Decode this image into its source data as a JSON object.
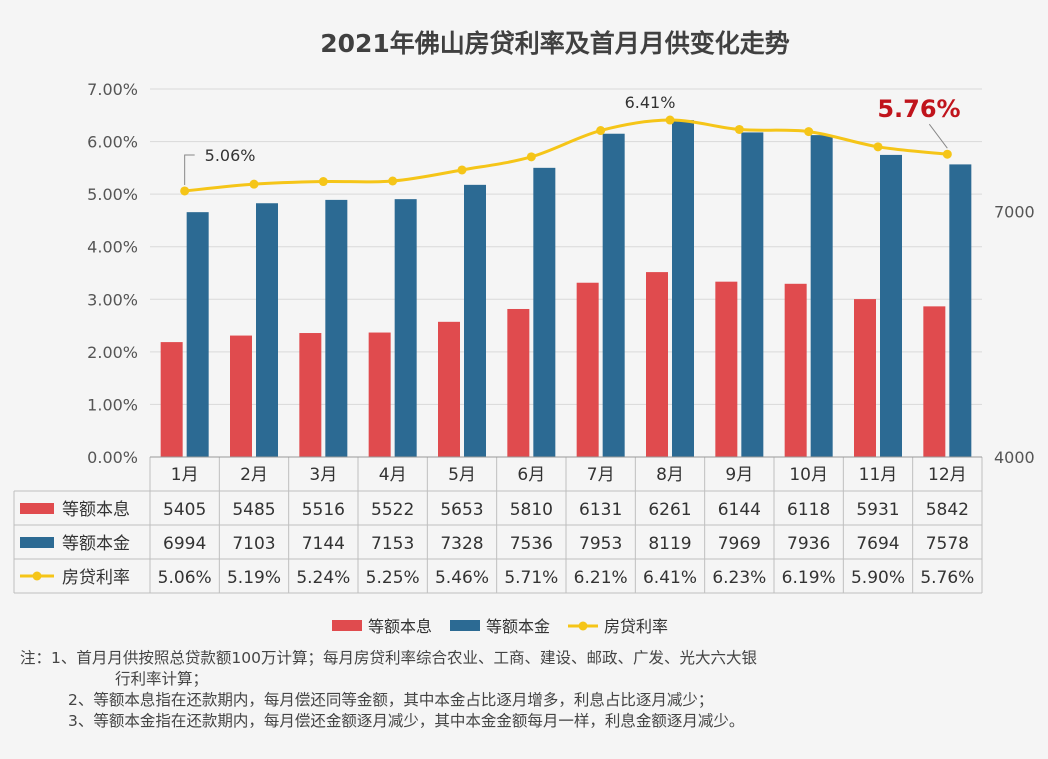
{
  "chart_data": {
    "type": "bar",
    "title": "2021年佛山房贷利率及首月月供变化走势",
    "categories": [
      "1月",
      "2月",
      "3月",
      "4月",
      "5月",
      "6月",
      "7月",
      "8月",
      "9月",
      "10月",
      "11月",
      "12月"
    ],
    "series": [
      {
        "name": "等额本息",
        "kind": "bar",
        "axis": "right",
        "color": "#E04B4E",
        "values": [
          5405,
          5485,
          5516,
          5522,
          5653,
          5810,
          6131,
          6261,
          6144,
          6118,
          5931,
          5842
        ]
      },
      {
        "name": "等额本金",
        "kind": "bar",
        "axis": "right",
        "color": "#2C6A93",
        "values": [
          6994,
          7103,
          7144,
          7153,
          7328,
          7536,
          7953,
          8119,
          7969,
          7936,
          7694,
          7578
        ]
      },
      {
        "name": "房贷利率",
        "kind": "line",
        "axis": "left",
        "color": "#F5C518",
        "values": [
          5.06,
          5.19,
          5.24,
          5.25,
          5.46,
          5.71,
          6.21,
          6.41,
          6.23,
          6.19,
          5.9,
          5.76
        ],
        "value_labels": [
          "5.06%",
          "5.19%",
          "5.24%",
          "5.25%",
          "5.46%",
          "5.71%",
          "6.21%",
          "6.41%",
          "6.23%",
          "6.19%",
          "5.90%",
          "5.76%"
        ]
      }
    ],
    "y_left": {
      "ylim": [
        0,
        7
      ],
      "ticks": [
        "0.00%",
        "1.00%",
        "2.00%",
        "3.00%",
        "4.00%",
        "5.00%",
        "6.00%",
        "7.00%"
      ]
    },
    "y_right": {
      "ylim": [
        4000,
        8500
      ],
      "ticks": [
        "4000",
        "7000"
      ],
      "tick_values": [
        4000,
        7000
      ]
    },
    "annotations": [
      {
        "index": 0,
        "text": "5.06%",
        "style": "normal"
      },
      {
        "index": 7,
        "text": "6.41%",
        "style": "normal"
      },
      {
        "index": 11,
        "text": "5.76%",
        "style": "highlight",
        "color": "#C0141C"
      }
    ],
    "legend_position": "bottom",
    "data_table": true,
    "grid": true
  },
  "notes": [
    {
      "prefix": "注：1、",
      "text": "首月月供按照总贷款额100万计算；每月房贷利率综合农业、工商、建设、邮政、广发、光大六大银",
      "cont": "行利率计算；"
    },
    {
      "prefix": "2、",
      "text": "等额本息指在还款期内，每月偿还同等金额，其中本金占比逐月增多，利息占比逐月减少；"
    },
    {
      "prefix": "3、",
      "text": "等额本金指在还款期内，每月偿还金额逐月减少，其中本金金额每月一样，利息金额逐月减少。"
    }
  ]
}
